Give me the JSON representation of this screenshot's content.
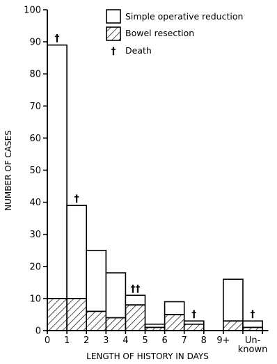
{
  "chart_data": {
    "type": "bar",
    "stacked": true,
    "xlabel": "LENGTH OF HISTORY IN DAYS",
    "ylabel": "NUMBER OF CASES",
    "ylim": [
      0,
      100
    ],
    "y_ticks": [
      "0",
      "10",
      "20",
      "30",
      "40",
      "50",
      "60",
      "70",
      "80",
      "90",
      "100"
    ],
    "x_ticks": [
      "0",
      "1",
      "2",
      "3",
      "4",
      "5",
      "6",
      "7",
      "8",
      "9+",
      "Un-",
      "known"
    ],
    "categories": [
      "0-1",
      "1-2",
      "2-3",
      "3-4",
      "4-5",
      "5-6",
      "6-7",
      "7-8",
      "9+",
      "Unknown"
    ],
    "series": [
      {
        "name": "Bowel resection",
        "values": [
          10,
          10,
          6,
          4,
          8,
          1,
          5,
          2,
          3,
          1
        ]
      },
      {
        "name": "Simple operative reduction",
        "values": [
          79,
          29,
          19,
          14,
          3,
          1,
          4,
          1,
          13,
          2
        ]
      }
    ],
    "totals": [
      89,
      39,
      25,
      18,
      11,
      2,
      9,
      3,
      16,
      3
    ],
    "deaths": [
      "†",
      "†",
      "",
      "",
      "††",
      "",
      "",
      "†",
      "",
      "†"
    ],
    "legend": [
      {
        "label": "Simple operative reduction",
        "swatch": "open"
      },
      {
        "label": "Bowel resection",
        "swatch": "hatched"
      },
      {
        "label": "Death",
        "swatch": "dagger",
        "symbol": "†"
      }
    ]
  }
}
